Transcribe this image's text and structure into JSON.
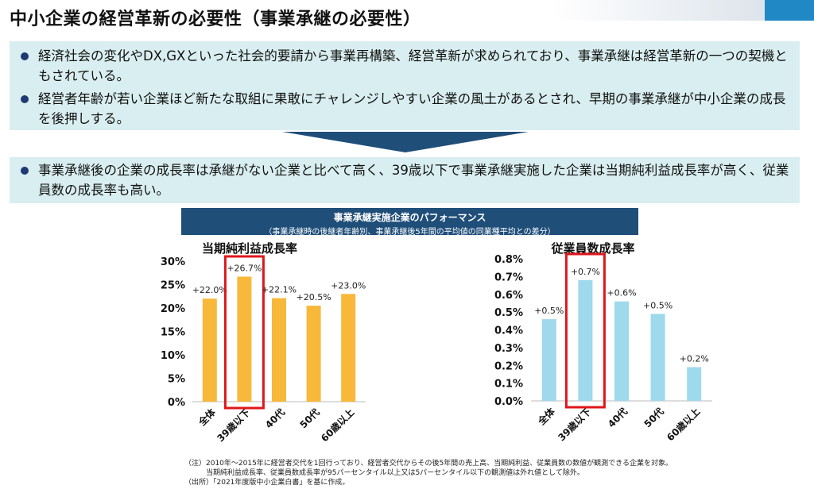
{
  "title": "中小企業の経営革新の必要性（事業承継の必要性）",
  "bullets_top": [
    "経済社会の変化やDX,GXといった社会的要請から事業再構築、経営革新が求められており、事業承継は経営革新の一つの契機ともされている。",
    "経営者年齢が若い企業ほど新たな取組に果敢にチャレンジしやすい企業の風土があるとされ、早期の事業承継が中小企業の成長を後押しする。"
  ],
  "bullet_bottom": "事業承継後の企業の成長率は承継がない企業と比べて高く、39歳以下で事業承継実施した企業は当期純利益成長率が高く、従業員数の成長率も高い。",
  "performance": {
    "title": "事業承継実施企業のパフォーマンス",
    "subtitle": "（事業承継時の後継者年齢別、事業承継後5年間の平均値の同業種平均との差分）"
  },
  "colors": {
    "orange": "#f8b83a",
    "blue": "#9fd9ec",
    "highlight": "#e0161b",
    "navy": "#1f4e79"
  },
  "chart_data": [
    {
      "type": "bar",
      "title": "当期純利益成長率",
      "categories": [
        "全体",
        "39歳以下",
        "40代",
        "50代",
        "60歳以上"
      ],
      "values": [
        22.0,
        26.7,
        22.1,
        20.5,
        23.0
      ],
      "labels": [
        "+22.0%",
        "+26.7%",
        "+22.1%",
        "+20.5%",
        "+23.0%"
      ],
      "ylim": [
        0,
        30
      ],
      "yticks": [
        "0%",
        "5%",
        "10%",
        "15%",
        "20%",
        "25%",
        "30%"
      ],
      "color": "#f8b83a",
      "highlight": "39歳以下"
    },
    {
      "type": "bar",
      "title": "従業員数成長率",
      "categories": [
        "全体",
        "39歳以下",
        "40代",
        "50代",
        "60歳以上"
      ],
      "values": [
        0.46,
        0.68,
        0.56,
        0.49,
        0.19
      ],
      "labels": [
        "+0.5%",
        "+0.7%",
        "+0.6%",
        "+0.5%",
        "+0.2%"
      ],
      "ylim": [
        0,
        0.8
      ],
      "yticks": [
        "0.0%",
        "0.1%",
        "0.2%",
        "0.3%",
        "0.4%",
        "0.5%",
        "0.6%",
        "0.7%",
        "0.8%"
      ],
      "color": "#9fd9ec",
      "highlight": "39歳以下"
    }
  ],
  "footnotes": [
    "（注）2010年～2015年に経営者交代を1回行っており、経営者交代からその後5年間の売上高、当期純利益、従業員数の数値が観測できる企業を対象。",
    "　　　当期純利益成長率、従業員数成長率が95パーセンタイル以上又は5パーセンタイル以下の観測値は外れ値として除外。",
    "（出所）「2021年度版中小企業白書」を基に作成。"
  ]
}
